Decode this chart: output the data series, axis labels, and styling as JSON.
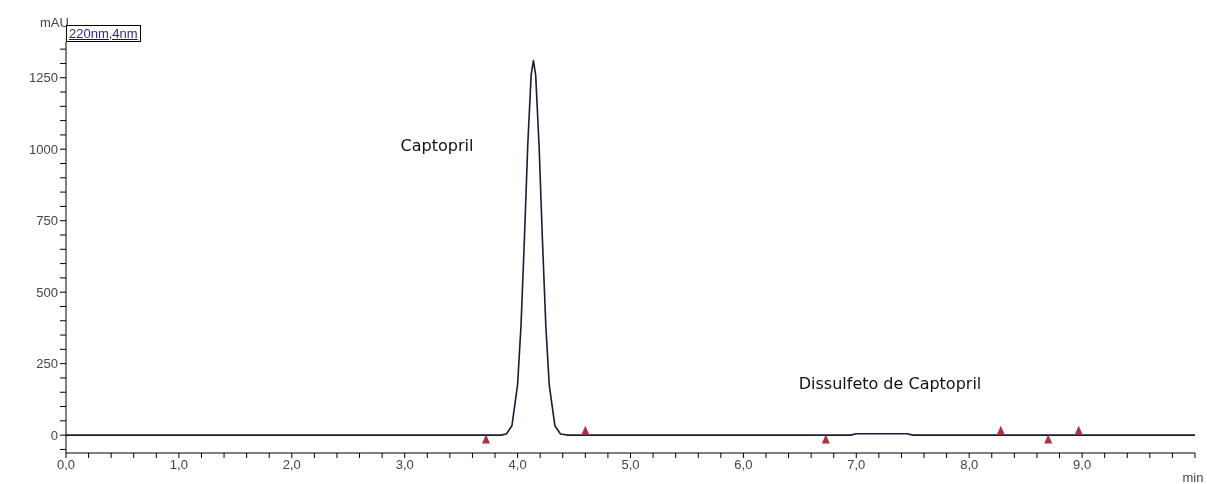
{
  "chart_data": {
    "type": "line",
    "xlabel": "min",
    "ylabel": "mAU",
    "legend": "top left",
    "marker": "none",
    "xlim": [
      0,
      10
    ],
    "ylim": [
      -62.5,
      1375
    ],
    "xticks": [
      {
        "value": 0,
        "label": "0,0"
      },
      {
        "value": 0.2,
        "label": null
      },
      {
        "value": 0.4,
        "label": null
      },
      {
        "value": 0.6,
        "label": null
      },
      {
        "value": 0.8,
        "label": null
      },
      {
        "value": 1,
        "label": "1,0"
      },
      {
        "value": 1.2,
        "label": null
      },
      {
        "value": 1.4,
        "label": null
      },
      {
        "value": 1.6,
        "label": null
      },
      {
        "value": 1.8,
        "label": null
      },
      {
        "value": 2,
        "label": "2,0"
      },
      {
        "value": 2.2,
        "label": null
      },
      {
        "value": 2.4,
        "label": null
      },
      {
        "value": 2.6,
        "label": null
      },
      {
        "value": 2.8,
        "label": null
      },
      {
        "value": 3,
        "label": "3,0"
      },
      {
        "value": 3.2,
        "label": null
      },
      {
        "value": 3.4,
        "label": null
      },
      {
        "value": 3.6,
        "label": null
      },
      {
        "value": 3.8,
        "label": null
      },
      {
        "value": 4,
        "label": "4,0"
      },
      {
        "value": 4.2,
        "label": null
      },
      {
        "value": 4.4,
        "label": null
      },
      {
        "value": 4.6,
        "label": null
      },
      {
        "value": 4.8,
        "label": null
      },
      {
        "value": 5,
        "label": "5,0"
      },
      {
        "value": 5.2,
        "label": null
      },
      {
        "value": 5.4,
        "label": null
      },
      {
        "value": 5.6,
        "label": null
      },
      {
        "value": 5.8,
        "label": null
      },
      {
        "value": 6,
        "label": "6,0"
      },
      {
        "value": 6.2,
        "label": null
      },
      {
        "value": 6.4,
        "label": null
      },
      {
        "value": 6.6,
        "label": null
      },
      {
        "value": 6.8,
        "label": null
      },
      {
        "value": 7,
        "label": "7,0"
      },
      {
        "value": 7.2,
        "label": null
      },
      {
        "value": 7.4,
        "label": null
      },
      {
        "value": 7.6,
        "label": null
      },
      {
        "value": 7.8,
        "label": null
      },
      {
        "value": 8,
        "label": "8,0"
      },
      {
        "value": 8.2,
        "label": null
      },
      {
        "value": 8.4,
        "label": null
      },
      {
        "value": 8.6,
        "label": null
      },
      {
        "value": 8.8,
        "label": null
      },
      {
        "value": 9,
        "label": "9,0"
      },
      {
        "value": 9.2,
        "label": null
      },
      {
        "value": 9.4,
        "label": null
      },
      {
        "value": 9.6,
        "label": null
      },
      {
        "value": 9.8,
        "label": null
      },
      {
        "value": 10,
        "label": null
      }
    ],
    "yticks": [
      {
        "value": -50,
        "label": null
      },
      0,
      {
        "value": 50,
        "label": null
      },
      {
        "value": 100,
        "label": null
      },
      {
        "value": 150,
        "label": null
      },
      {
        "value": 200,
        "label": null
      },
      250,
      {
        "value": 300,
        "label": null
      },
      {
        "value": 350,
        "label": null
      },
      {
        "value": 400,
        "label": null
      },
      {
        "value": 450,
        "label": null
      },
      500,
      {
        "value": 550,
        "label": null
      },
      {
        "value": 600,
        "label": null
      },
      {
        "value": 650,
        "label": null
      },
      {
        "value": 700,
        "label": null
      },
      750,
      {
        "value": 800,
        "label": null
      },
      {
        "value": 850,
        "label": null
      },
      {
        "value": 900,
        "label": null
      },
      {
        "value": 950,
        "label": null
      },
      1000,
      {
        "value": 1050,
        "label": null
      },
      {
        "value": 1100,
        "label": null
      },
      {
        "value": 1150,
        "label": null
      },
      {
        "value": 1200,
        "label": null
      },
      1250,
      {
        "value": 1300,
        "label": null
      },
      {
        "value": 1350,
        "label": null
      }
    ],
    "series": [
      {
        "name": "220nm,4nm",
        "color": "#1a1a3a",
        "x": [
          0,
          3.85,
          3.9,
          3.95,
          4.0,
          4.03,
          4.06,
          4.09,
          4.12,
          4.14,
          4.16,
          4.19,
          4.22,
          4.25,
          4.28,
          4.33,
          4.38,
          4.45,
          6.95,
          7.0,
          7.45,
          7.5,
          10
        ],
        "values": [
          0,
          0,
          4,
          33,
          177,
          382,
          683,
          1015,
          1260,
          1310,
          1260,
          1015,
          683,
          382,
          177,
          33,
          4,
          0,
          0,
          5,
          5,
          0,
          0
        ]
      },
      {
        "type": "scatter",
        "color": "#b03040",
        "marker": "triangle",
        "x": [
          3.72,
          4.6,
          6.73,
          8.28,
          8.7,
          8.97
        ],
        "values": [
          -15,
          15,
          -15,
          15,
          -15,
          15
        ]
      }
    ],
    "annotations": [
      "Captopril",
      "Dissulfeto de Captopril"
    ]
  }
}
